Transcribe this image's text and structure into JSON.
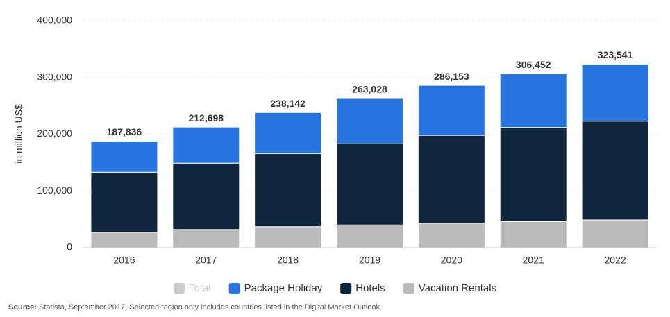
{
  "chart_data": {
    "type": "stacked-bar",
    "y_label": "in million US$",
    "categories": [
      "2016",
      "2017",
      "2018",
      "2019",
      "2020",
      "2021",
      "2022"
    ],
    "series": [
      {
        "name": "Vacation Rentals",
        "color": "#bababa",
        "values": [
          27000,
          32000,
          37000,
          40000,
          43000,
          46000,
          49000
        ]
      },
      {
        "name": "Hotels",
        "color": "#10263d",
        "values": [
          106000,
          117000,
          129000,
          143000,
          155000,
          166000,
          174000
        ]
      },
      {
        "name": "Package Holiday",
        "color": "#2875df",
        "values": [
          54836,
          63698,
          72142,
          80028,
          88153,
          94452,
          100541
        ]
      }
    ],
    "total": {
      "name": "Total",
      "color": "#cccccc",
      "values": [
        187836,
        212698,
        238142,
        263028,
        286153,
        306452,
        323541
      ],
      "value_labels": [
        "187,836",
        "212,698",
        "238,142",
        "263,028",
        "286,153",
        "306,452",
        "323,541"
      ]
    },
    "ylim": [
      0,
      400000
    ],
    "yticks": [
      0,
      {
        "value": 100000,
        "label": "100,000"
      },
      {
        "value": 200000,
        "label": "200,000"
      },
      {
        "value": 300000,
        "label": "300,000"
      },
      {
        "value": 400000,
        "label": "400,000"
      }
    ],
    "grid": true,
    "legend": "bottom",
    "source": {
      "label": "Source:",
      "text": " Statista, September 2017; Selected region only includes countries listed in the Digital Market Outlook"
    }
  }
}
